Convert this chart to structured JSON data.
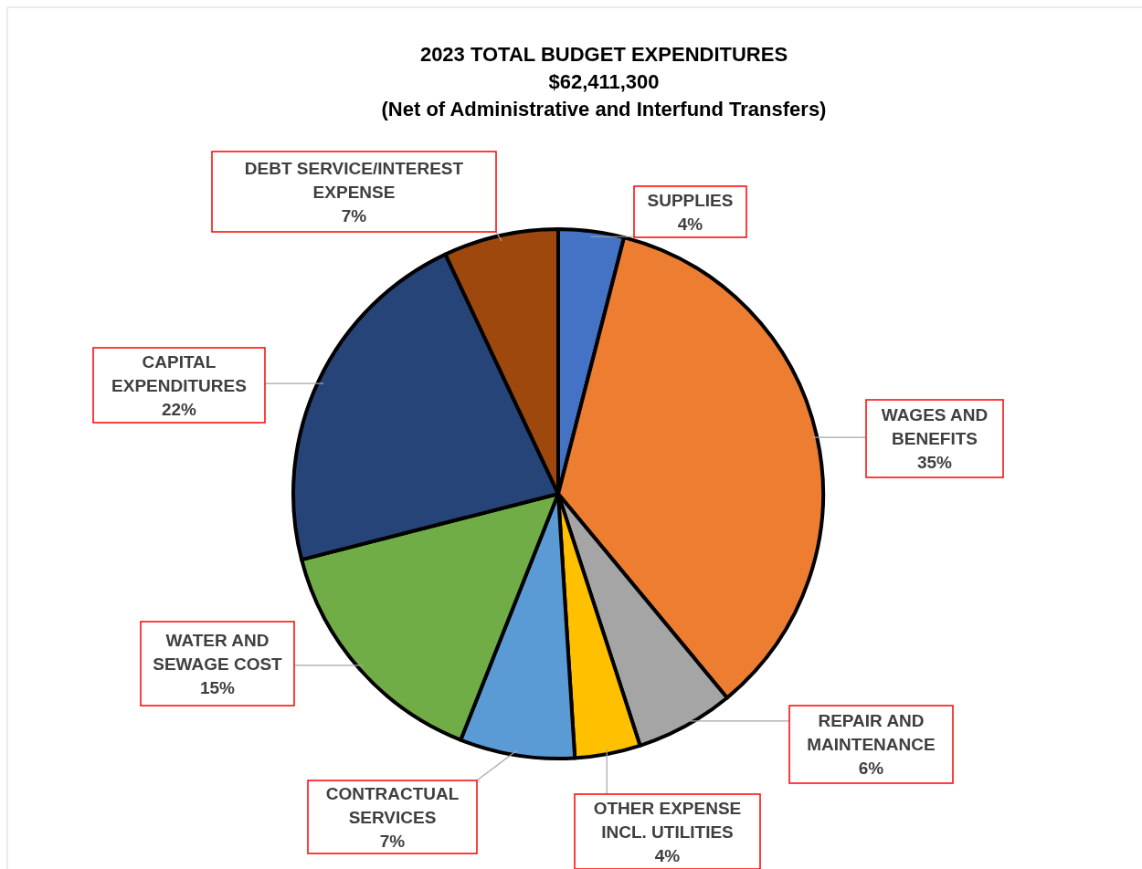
{
  "chart_data": {
    "type": "pie",
    "title": "2023 TOTAL BUDGET EXPENDITURES",
    "subtitle": "$62,411,300",
    "annotations": [
      "(Net of Administrative and Interfund Transfers)"
    ],
    "categories": [
      "SUPPLIES",
      "WAGES AND BENEFITS",
      "REPAIR AND MAINTENANCE",
      "OTHER EXPENSE INCL. UTILITIES",
      "CONTRACTUAL SERVICES",
      "WATER AND SEWAGE COST",
      "CAPITAL EXPENDITURES",
      "DEBT SERVICE/INTEREST EXPENSE"
    ],
    "values": [
      4,
      35,
      6,
      4,
      7,
      15,
      22,
      7
    ],
    "value_labels": [
      "4%",
      "35%",
      "6%",
      "4%",
      "7%",
      "15%",
      "22%",
      "7%"
    ],
    "colors": [
      "#4472c4",
      "#ed7d31",
      "#a5a5a5",
      "#ffc000",
      "#5b9bd5",
      "#70ad47",
      "#264478",
      "#9e480e"
    ]
  }
}
